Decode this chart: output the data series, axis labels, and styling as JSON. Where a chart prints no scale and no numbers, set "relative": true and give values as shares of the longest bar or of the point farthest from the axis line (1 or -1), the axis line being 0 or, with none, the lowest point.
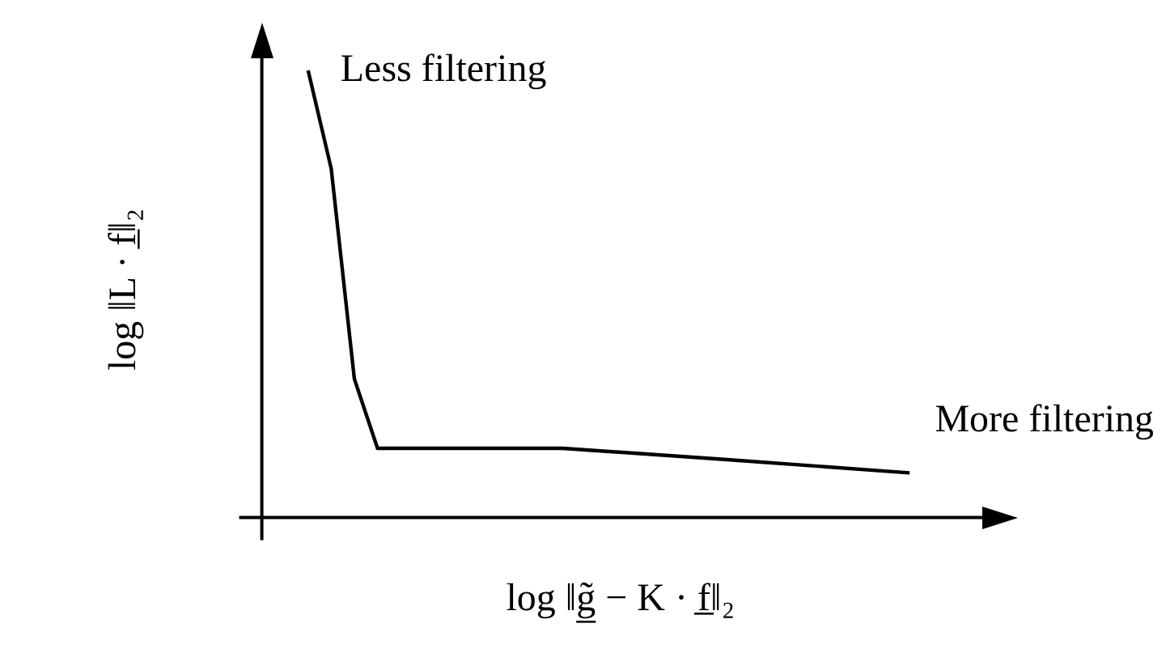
{
  "chart_data": {
    "type": "line",
    "relative": true,
    "xlabel": "log ‖g̲̃ − K · f̲‖₂",
    "ylabel": "log ‖L · f̲‖₂",
    "categories": [
      null,
      null,
      null,
      null,
      null,
      null,
      null,
      null,
      null,
      null,
      null,
      null,
      null,
      null,
      null,
      null,
      null,
      null,
      null,
      null,
      null,
      null,
      null,
      null,
      null,
      null,
      null,
      null,
      null,
      null,
      null,
      null
    ],
    "series": [
      {
        "color": "#000000",
        "values": [
          null,
          null,
          1.0,
          0.78,
          0.31,
          0.155,
          null,
          null,
          null,
          null,
          null,
          null,
          null,
          0.155,
          null,
          null,
          null,
          null,
          null,
          null,
          0.13,
          null,
          null,
          null,
          null,
          null,
          null,
          null,
          0.1,
          null,
          null,
          null
        ]
      }
    ],
    "marker": "none",
    "line_style": "solid",
    "grid": false,
    "legend": false,
    "annotations": [
      "Less filtering",
      "More filtering"
    ]
  }
}
